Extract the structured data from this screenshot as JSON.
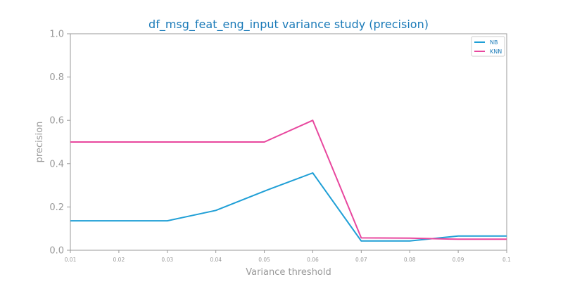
{
  "chart_data": {
    "type": "line",
    "title": "df_msg_feat_eng_input variance study (precision)",
    "xlabel": "Variance threshold",
    "ylabel": "precision",
    "x": [
      0.01,
      0.02,
      0.03,
      0.04,
      0.05,
      0.06,
      0.07,
      0.08,
      0.09,
      0.1
    ],
    "x_tick_labels": [
      "0.01",
      "0.02",
      "0.03",
      "0.04",
      "0.05",
      "0.06",
      "0.07",
      "0.08",
      "0.09",
      "0.1"
    ],
    "y_tick_labels": [
      "0.0",
      "0.2",
      "0.4",
      "0.6",
      "0.8",
      "1.0"
    ],
    "xlim": [
      0.01,
      0.1
    ],
    "ylim": [
      0.0,
      1.0
    ],
    "grid": false,
    "legend_position": "top-right",
    "series": [
      {
        "name": "NB",
        "color": "#1f9fd6",
        "values": [
          0.136,
          0.136,
          0.136,
          0.184,
          0.273,
          0.357,
          0.043,
          0.043,
          0.066,
          0.066
        ]
      },
      {
        "name": "KNN",
        "color": "#e8479e",
        "values": [
          0.5,
          0.5,
          0.5,
          0.5,
          0.5,
          0.6,
          0.057,
          0.056,
          0.051,
          0.051
        ]
      }
    ],
    "colors": {
      "title": "#1a7ab8",
      "axis_text": "#999999",
      "axis_line": "#999999"
    }
  }
}
